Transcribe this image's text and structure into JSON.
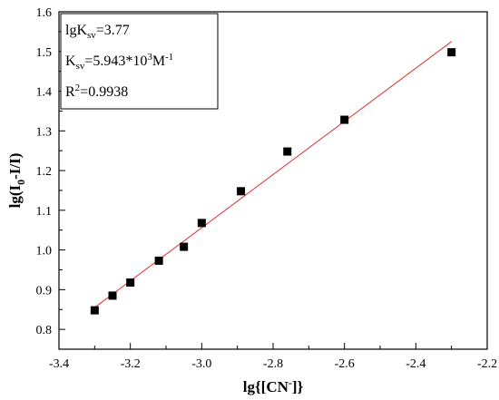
{
  "chart_data": {
    "type": "scatter",
    "title": "",
    "xlabel": {
      "prefix": "lg{[CN",
      "sup": "-",
      "suffix": "]}"
    },
    "ylabel": {
      "prefix": "lg(I",
      "sub": "0",
      "suffix": "-I/I)"
    },
    "xlim": [
      -3.4,
      -2.2
    ],
    "ylim": [
      0.75,
      1.6
    ],
    "x_ticks": [
      "-3.4",
      "-3.2",
      "-3.0",
      "-2.8",
      "-2.6",
      "-2.4",
      "-2.2"
    ],
    "y_ticks": [
      "0.8",
      "0.9",
      "1.0",
      "1.1",
      "1.2",
      "1.3",
      "1.4",
      "1.5",
      "1.6"
    ],
    "grid": false,
    "series": [
      {
        "values": [
          {
            "x": -3.3,
            "y": 0.848
          },
          {
            "x": -3.25,
            "y": 0.885
          },
          {
            "x": -3.2,
            "y": 0.918
          },
          {
            "x": -3.12,
            "y": 0.973
          },
          {
            "x": -3.05,
            "y": 1.008
          },
          {
            "x": -3.0,
            "y": 1.068
          },
          {
            "x": -2.89,
            "y": 1.148
          },
          {
            "x": -2.76,
            "y": 1.248
          },
          {
            "x": -2.6,
            "y": 1.328
          },
          {
            "x": -2.3,
            "y": 1.498
          }
        ],
        "color": "#000000",
        "marker": "square"
      }
    ],
    "fit_line": {
      "x": [
        -3.3,
        -2.3
      ],
      "y": [
        0.855,
        1.525
      ],
      "color": "#e03030"
    },
    "annotation": {
      "line1": {
        "prefix": "lgK",
        "sub": "sv",
        "suffix": "=3.77"
      },
      "line2": {
        "prefix": "K",
        "sub": "sv",
        "mid": "=5.943*10",
        "sup1": "3",
        "mid2": "M",
        "sup2": "-1"
      },
      "line3": {
        "prefix": "R",
        "sup": "2",
        "suffix": "=0.9938"
      }
    }
  }
}
